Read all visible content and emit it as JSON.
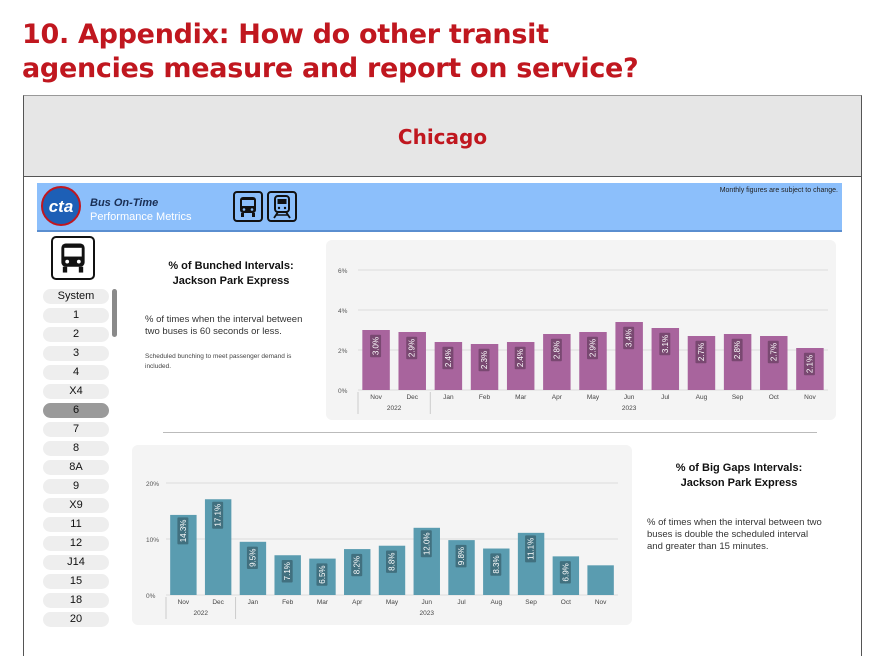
{
  "page": {
    "title_line1": "10. Appendix: How do other transit",
    "title_line2": "agencies measure and report on service?"
  },
  "banner": {
    "title": "Chicago"
  },
  "dashboard": {
    "logo_text": "cta",
    "title": "Bus On-Time",
    "subtitle": "Performance Metrics",
    "note": "Monthly figures are subject to change.",
    "mode_buttons": [
      "bus-icon",
      "train-icon"
    ],
    "routes": [
      "System",
      "1",
      "2",
      "3",
      "4",
      "X4",
      "6",
      "7",
      "8",
      "8A",
      "9",
      "X9",
      "11",
      "12",
      "J14",
      "15",
      "18",
      "20"
    ],
    "selected_route": "6"
  },
  "bunched": {
    "title_line1": "% of Bunched Intervals:",
    "title_line2": "Jackson Park Express",
    "desc_line1": "% of times when the interval between",
    "desc_line2": "two buses is 60 seconds or less.",
    "note_line1": "Scheduled bunching to meet passenger demand is",
    "note_line2": "included."
  },
  "gaps": {
    "title_line1": "% of Big Gaps Intervals:",
    "title_line2": "Jackson Park Express",
    "desc_line1": "% of times when the interval between two",
    "desc_line2": "buses is double the scheduled interval",
    "desc_line3": "and greater than 15 minutes."
  },
  "chart_data": [
    {
      "type": "bar",
      "color": "#a8649d",
      "categories": [
        "Nov",
        "Dec",
        "Jan",
        "Feb",
        "Mar",
        "Apr",
        "May",
        "Jun",
        "Jul",
        "Aug",
        "Sep",
        "Oct",
        "Nov"
      ],
      "year_labels": [
        {
          "label": "2022",
          "start": 0,
          "end": 1
        },
        {
          "label": "2023",
          "start": 2,
          "end": 12
        }
      ],
      "values": [
        3.0,
        2.9,
        2.4,
        2.3,
        2.4,
        2.8,
        2.9,
        3.4,
        3.1,
        2.7,
        2.8,
        2.7,
        2.1
      ],
      "labels": [
        "3.0%",
        "2.9%",
        "2.4%",
        "2.3%",
        "2.4%",
        "2.8%",
        "2.9%",
        "3.4%",
        "3.1%",
        "2.7%",
        "2.8%",
        "2.7%",
        "2.1%"
      ],
      "ylim": [
        0,
        6
      ],
      "yticks": [
        0,
        2,
        4,
        6
      ],
      "ytick_labels": [
        "0%",
        "2%",
        "4%",
        "6%"
      ],
      "grid": true
    },
    {
      "type": "bar",
      "color": "#5a9cb0",
      "categories": [
        "Nov",
        "Dec",
        "Jan",
        "Feb",
        "Mar",
        "Apr",
        "May",
        "Jun",
        "Jul",
        "Aug",
        "Sep",
        "Oct",
        "Nov"
      ],
      "year_labels": [
        {
          "label": "2022",
          "start": 0,
          "end": 1
        },
        {
          "label": "2023",
          "start": 2,
          "end": 12
        }
      ],
      "values": [
        14.3,
        17.1,
        9.5,
        7.1,
        6.5,
        8.2,
        8.8,
        12.0,
        9.8,
        8.3,
        11.1,
        6.9,
        5.3
      ],
      "labels": [
        "14.3%",
        "17.1%",
        "9.5%",
        "7.1%",
        "6.5%",
        "8.2%",
        "8.8%",
        "12.0%",
        "9.8%",
        "8.3%",
        "11.1%",
        "6.9%",
        ""
      ],
      "ylim": [
        0,
        20
      ],
      "yticks": [
        0,
        10,
        20
      ],
      "ytick_labels": [
        "0%",
        "10%",
        "20%"
      ],
      "grid": true
    }
  ]
}
